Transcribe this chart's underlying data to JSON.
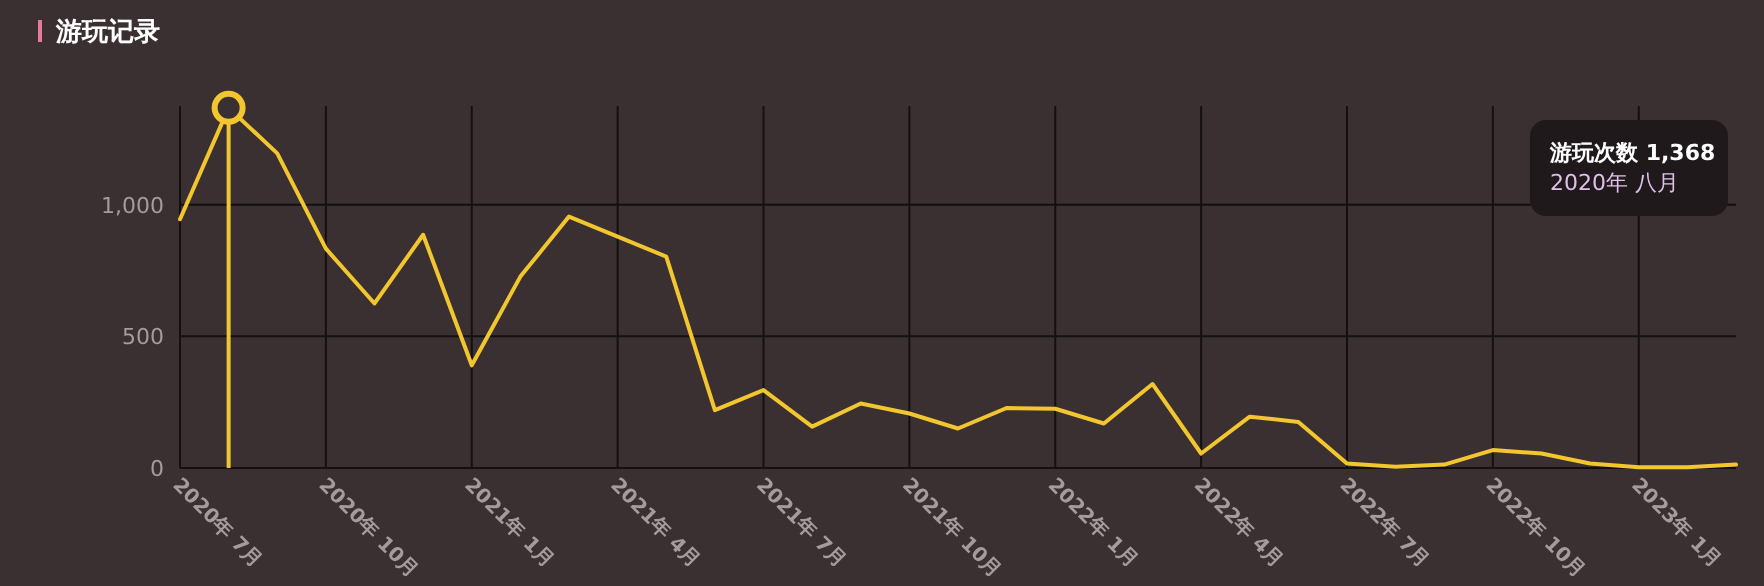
{
  "chart_data": {
    "type": "line",
    "title": "游玩记录",
    "x": [
      "2020-07",
      "2020-08",
      "2020-09",
      "2020-10",
      "2020-11",
      "2020-12",
      "2021-01",
      "2021-02",
      "2021-03",
      "2021-04",
      "2021-05",
      "2021-06",
      "2021-07",
      "2021-08",
      "2021-09",
      "2021-10",
      "2021-11",
      "2021-12",
      "2022-01",
      "2022-02",
      "2022-03",
      "2022-04",
      "2022-05",
      "2022-06",
      "2022-07",
      "2022-08",
      "2022-09",
      "2022-10",
      "2022-11",
      "2022-12",
      "2023-01",
      "2023-02",
      "2023-03"
    ],
    "series": [
      {
        "color": "#f2c62e",
        "values": [
          945,
          1368,
          1195,
          833,
          625,
          886,
          390,
          727,
          955,
          879,
          803,
          220,
          296,
          157,
          245,
          207,
          150,
          228,
          225,
          169,
          319,
          55,
          195,
          175,
          17,
          5,
          13,
          68,
          55,
          17,
          3,
          3,
          13
        ]
      }
    ],
    "xlim": [
      "2020-07",
      "2023-03"
    ],
    "xticks": [
      {
        "value": "2020-07",
        "label": "2020年 7月"
      },
      {
        "value": "2020-10",
        "label": "2020年 10月"
      },
      {
        "value": "2021-01",
        "label": "2021年 1月"
      },
      {
        "value": "2021-04",
        "label": "2021年 4月"
      },
      {
        "value": "2021-07",
        "label": "2021年 7月"
      },
      {
        "value": "2021-10",
        "label": "2021年 10月"
      },
      {
        "value": "2022-01",
        "label": "2022年 1月"
      },
      {
        "value": "2022-04",
        "label": "2022年 4月"
      },
      {
        "value": "2022-07",
        "label": "2022年 7月"
      },
      {
        "value": "2022-10",
        "label": "2022年 10月"
      },
      {
        "value": "2023-01",
        "label": "2023年 1月"
      }
    ],
    "ylim": [
      0,
      1375
    ],
    "yticks": [
      0,
      500,
      {
        "value": 1000,
        "label": "1,000"
      }
    ],
    "grid": true,
    "marker": "none",
    "line_style": "solid",
    "ref_lines": [
      {
        "axis": "x",
        "value": "2020-08",
        "color": "#f2c62e"
      }
    ],
    "annotations": [
      "游玩次数 1,368",
      "2020年 八月"
    ]
  }
}
